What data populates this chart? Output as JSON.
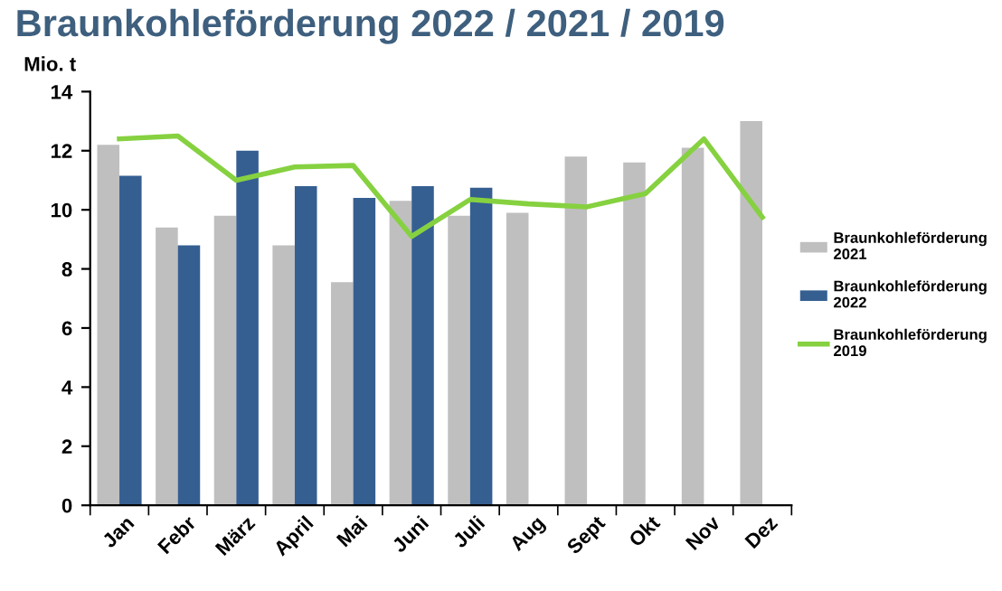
{
  "chart_data": {
    "type": "bar",
    "title": "Braunkohleförderung 2022 / 2021 / 2019",
    "ylabel": "Mio. t",
    "categories": [
      "Jan",
      "Febr",
      "März",
      "April",
      "Mai",
      "Juni",
      "Juli",
      "Aug",
      "Sept",
      "Okt",
      "Nov",
      "Dez"
    ],
    "series": [
      {
        "name": "Braunkohleförderung\n2021",
        "color": "#bfbfbf",
        "values": [
          12.2,
          9.4,
          9.8,
          8.8,
          7.55,
          10.3,
          9.8,
          9.9,
          11.8,
          11.6,
          12.1,
          13.0
        ]
      },
      {
        "name": "Braunkohleförderung\n2022",
        "color": "#355f91",
        "values": [
          11.15,
          8.8,
          12.0,
          10.8,
          10.4,
          10.8,
          10.75,
          null,
          null,
          null,
          null,
          null
        ]
      },
      {
        "name": "Braunkohleförderung\n2019",
        "type": "line",
        "color": "#86d140",
        "values": [
          12.4,
          12.5,
          11.0,
          11.45,
          11.5,
          9.1,
          10.35,
          10.2,
          10.1,
          10.55,
          12.4,
          9.75
        ]
      }
    ],
    "ylim": [
      0,
      14
    ],
    "yticks": [
      0,
      2,
      4,
      6,
      8,
      10,
      12,
      14
    ],
    "grid": false,
    "legend": "right",
    "marker": "none"
  }
}
